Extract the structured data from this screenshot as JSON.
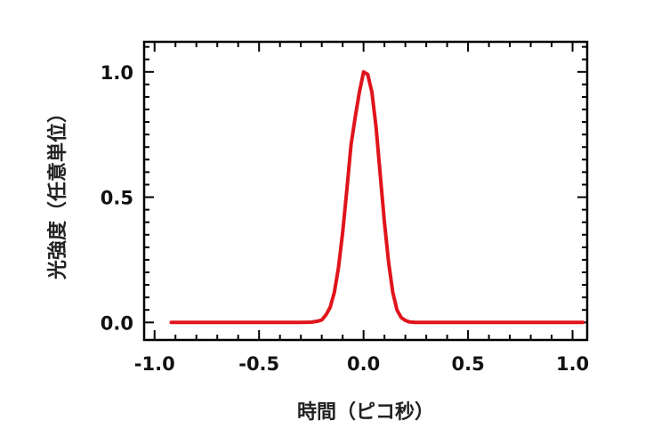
{
  "chart_data": {
    "type": "line",
    "title": "",
    "xlabel": "時間（ピコ秒）",
    "ylabel": "光強度（任意単位）",
    "xlim": [
      -1.05,
      1.07
    ],
    "ylim": [
      -0.07,
      1.12
    ],
    "x_ticks": [
      -1.0,
      -0.5,
      0.0,
      0.5,
      1.0
    ],
    "x_tick_labels": [
      "-1.0",
      "-0.5",
      "0.0",
      "0.5",
      "1.0"
    ],
    "y_ticks": [
      0.0,
      0.5,
      1.0
    ],
    "y_tick_labels": [
      "0.0",
      "0.5",
      "1.0"
    ],
    "grid": false,
    "colors": {
      "series": "#e0141c",
      "axes": "#000000"
    },
    "series": [
      {
        "x": [
          -0.92,
          -0.8,
          -0.6,
          -0.4,
          -0.3,
          -0.25,
          -0.22,
          -0.2,
          -0.18,
          -0.16,
          -0.14,
          -0.12,
          -0.1,
          -0.08,
          -0.06,
          -0.04,
          -0.02,
          0.0,
          0.02,
          0.04,
          0.06,
          0.08,
          0.1,
          0.12,
          0.14,
          0.16,
          0.18,
          0.2,
          0.22,
          0.25,
          0.3,
          0.4,
          0.6,
          0.8,
          1.05
        ],
        "y": [
          0.0,
          0.0,
          0.0,
          0.0,
          0.0,
          0.001,
          0.005,
          0.01,
          0.03,
          0.06,
          0.12,
          0.22,
          0.36,
          0.53,
          0.71,
          0.82,
          0.92,
          1.0,
          0.99,
          0.92,
          0.78,
          0.59,
          0.4,
          0.24,
          0.12,
          0.05,
          0.02,
          0.008,
          0.002,
          0.0,
          0.0,
          0.0,
          0.0,
          0.0,
          0.0
        ]
      }
    ]
  }
}
